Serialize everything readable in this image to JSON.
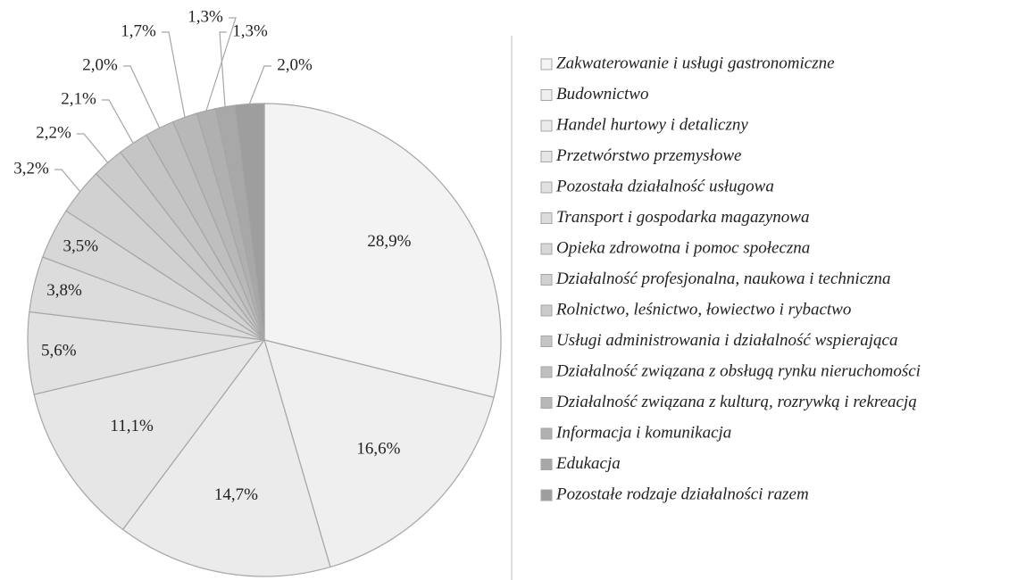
{
  "chart_data": {
    "type": "pie",
    "categories": [
      "Zakwaterowanie i usługi gastronomiczne",
      "Budownictwo",
      "Handel hurtowy i detaliczny",
      "Przetwórstwo przemysłowe",
      "Pozostała działalność usługowa",
      "Transport i gospodarka magazynowa",
      "Opieka zdrowotna i pomoc społeczna",
      "Działalność profesjonalna, naukowa i techniczna",
      "Rolnictwo, leśnictwo, łowiectwo i rybactwo",
      "Usługi administrowania i działalność wspierająca",
      "Działalność związana z obsługą rynku nieruchomości",
      "Działalność związana z kulturą, rozrywką i rekreacją",
      "Informacja i komunikacja",
      "Edukacja",
      "Pozostałe rodzaje działalności razem"
    ],
    "values": [
      28.9,
      16.6,
      14.7,
      11.1,
      5.6,
      3.8,
      3.5,
      3.2,
      2.2,
      2.1,
      2.0,
      1.7,
      1.3,
      1.3,
      2.0
    ],
    "value_labels": [
      "28,9%",
      "16,6%",
      "14,7%",
      "11,1%",
      "5,6%",
      "3,8%",
      "3,5%",
      "3,2%",
      "2,2%",
      "2,1%",
      "2,0%",
      "1,7%",
      "1,3%",
      "1,3%",
      "2,0%"
    ],
    "colors": [
      "#f3f3f3",
      "#efefef",
      "#ebebeb",
      "#e6e6e6",
      "#e1e1e1",
      "#dcdcdc",
      "#d7d7d7",
      "#d1d1d1",
      "#cbcbcb",
      "#c5c5c5",
      "#bfbfbf",
      "#b8b8b8",
      "#b0b0b0",
      "#a8a8a8",
      "#9e9e9e"
    ],
    "legend": "right"
  }
}
